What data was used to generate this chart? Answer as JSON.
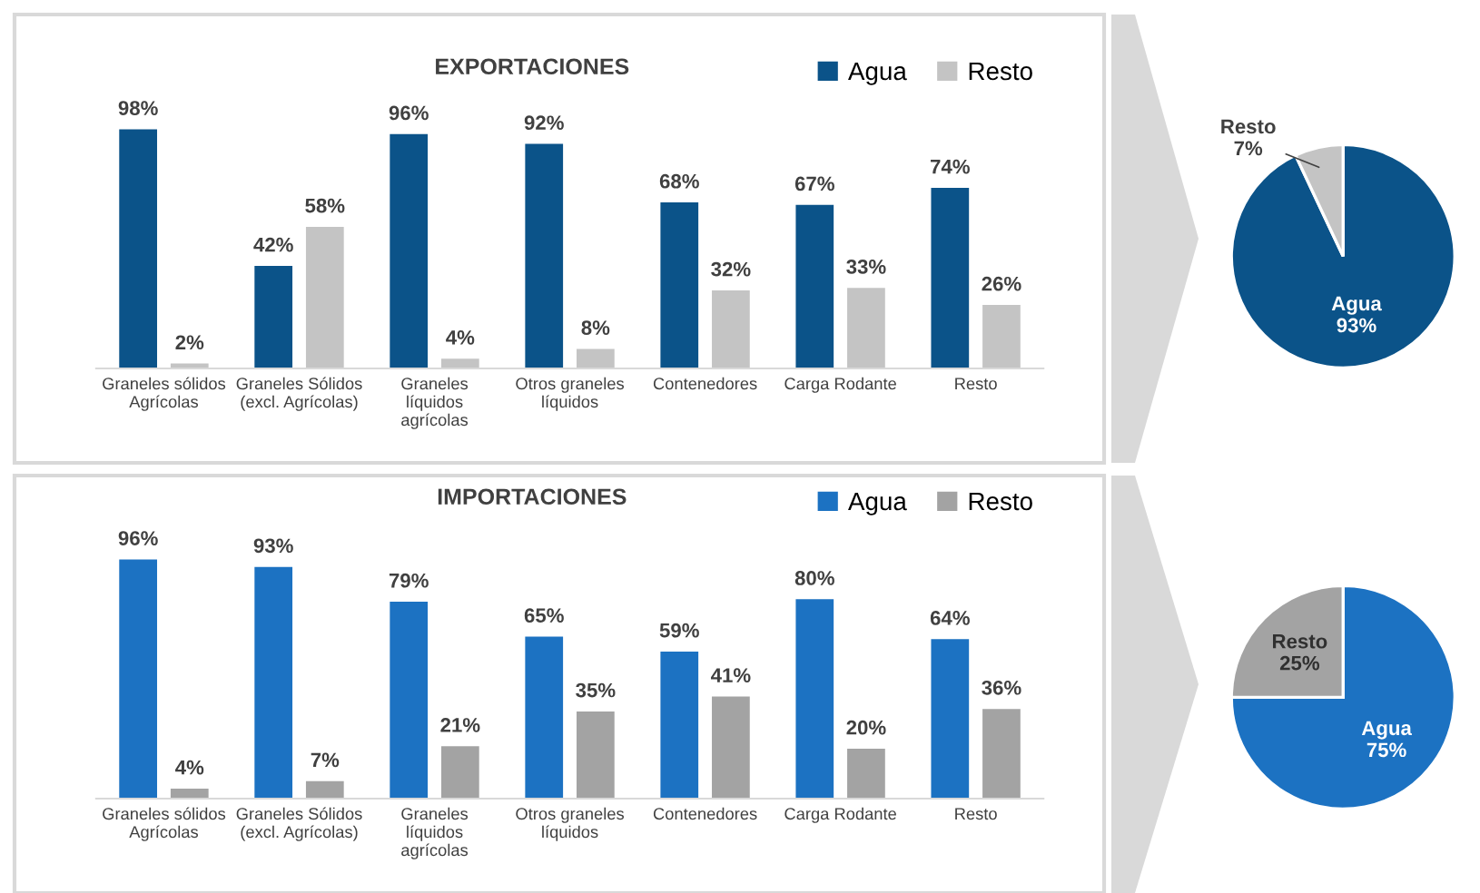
{
  "chart_data": [
    {
      "type": "bar",
      "title": "EXPORTACIONES",
      "legend": "top right",
      "categories": [
        "Graneles sólidos\nAgrícolas",
        "Graneles Sólidos\n(excl. Agrícolas)",
        "Graneles\nlíquidos\nagrícolas",
        "Otros graneles\nlíquidos",
        "Contenedores",
        "Carga Rodante",
        "Resto"
      ],
      "series": [
        {
          "name": "Agua",
          "color": "#0b5389",
          "values": [
            98,
            42,
            96,
            92,
            68,
            67,
            74
          ],
          "value_labels": [
            "98%",
            "42%",
            "96%",
            "92%",
            "68%",
            "67%",
            "74%"
          ]
        },
        {
          "name": "Resto",
          "color": "#c4c4c4",
          "values": [
            2,
            58,
            4,
            8,
            32,
            33,
            26
          ],
          "value_labels": [
            "2%",
            "58%",
            "4%",
            "8%",
            "32%",
            "33%",
            "26%"
          ]
        }
      ]
    },
    {
      "type": "pie",
      "categories": [
        "Agua",
        "Resto"
      ],
      "values": [
        93,
        7
      ],
      "colors": [
        "#0b5389",
        "#c4c4c4"
      ],
      "value_labels": [
        "93%",
        "7%"
      ]
    },
    {
      "type": "bar",
      "title": "IMPORTACIONES",
      "legend": "top right",
      "categories": [
        "Graneles sólidos\nAgrícolas",
        "Graneles Sólidos\n(excl. Agrícolas)",
        "Graneles\nlíquidos\nagrícolas",
        "Otros graneles\nlíquidos",
        "Contenedores",
        "Carga Rodante",
        "Resto"
      ],
      "series": [
        {
          "name": "Agua",
          "color": "#1c72c2",
          "values": [
            96,
            93,
            79,
            65,
            59,
            80,
            64
          ],
          "value_labels": [
            "96%",
            "93%",
            "79%",
            "65%",
            "59%",
            "80%",
            "64%"
          ]
        },
        {
          "name": "Resto",
          "color": "#a3a3a3",
          "values": [
            4,
            7,
            21,
            35,
            41,
            20,
            36
          ],
          "value_labels": [
            "4%",
            "7%",
            "21%",
            "35%",
            "41%",
            "20%",
            "36%"
          ]
        }
      ]
    },
    {
      "type": "pie",
      "categories": [
        "Agua",
        "Resto"
      ],
      "values": [
        75,
        25
      ],
      "colors": [
        "#1c72c2",
        "#a3a3a3"
      ],
      "value_labels": [
        "75%",
        "25%"
      ]
    }
  ]
}
